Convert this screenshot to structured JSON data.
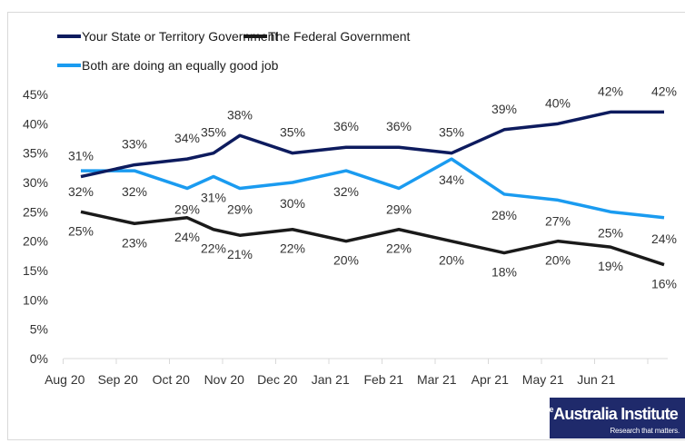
{
  "chart_data": {
    "type": "line",
    "title": "",
    "xlabel": "",
    "ylabel": "",
    "ylim": [
      0,
      45
    ],
    "yticks": [
      "0%",
      "5%",
      "10%",
      "15%",
      "20%",
      "25%",
      "30%",
      "35%",
      "40%",
      "45%"
    ],
    "ytick_values": [
      0,
      5,
      10,
      15,
      20,
      25,
      30,
      35,
      40,
      45
    ],
    "categories": [
      "Aug 20",
      "Sep 20",
      "Oct 20",
      "Nov 20",
      "Dec 20",
      "Jan 21",
      "Feb 21",
      "Mar 21",
      "Apr 21",
      "May 21",
      "Jun 21"
    ],
    "x_positions": [
      0,
      1,
      2,
      2.5,
      3,
      4,
      5,
      6,
      7,
      8,
      9,
      10,
      11
    ],
    "legend_position": "top-left",
    "grid": false,
    "series": [
      {
        "name": "Your State or Territory Government",
        "color": "#0d1b5e",
        "values": [
          31,
          33,
          34,
          35,
          38,
          35,
          36,
          36,
          35,
          39,
          40,
          42,
          42
        ],
        "label_pos": "above"
      },
      {
        "name": "The Federal Government",
        "color": "#1a1a1a",
        "values": [
          25,
          23,
          24,
          22,
          21,
          22,
          20,
          22,
          20,
          18,
          20,
          19,
          16
        ],
        "label_pos": "below"
      },
      {
        "name": "Both are doing an equally good job",
        "color": "#1a9bf0",
        "values": [
          32,
          32,
          29,
          31,
          29,
          30,
          32,
          29,
          34,
          28,
          27,
          25,
          24
        ],
        "label_pos": "below"
      }
    ]
  },
  "branding": {
    "the": "The",
    "name": "Australia Institute",
    "tagline": "Research that matters."
  }
}
